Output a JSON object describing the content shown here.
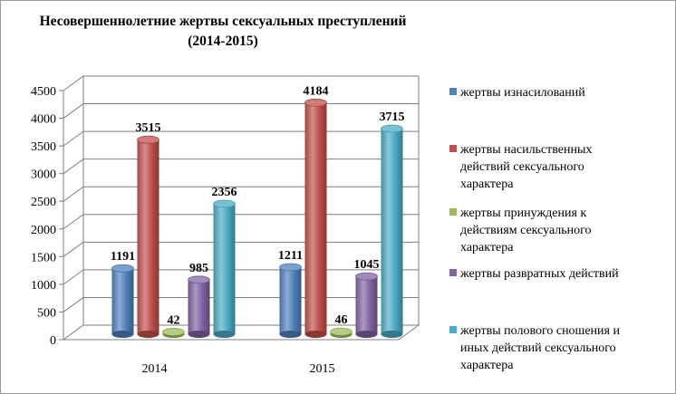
{
  "chart_data": {
    "type": "bar",
    "title_line1": "Несовершеннолетние жертвы сексуальных преступлений",
    "title_line2": "(2014-2015)",
    "categories": [
      "2014",
      "2015"
    ],
    "ylim": [
      0,
      4500
    ],
    "y_ticks": [
      0,
      500,
      1000,
      1500,
      2000,
      2500,
      3000,
      3500,
      4000,
      4500
    ],
    "grid": true,
    "legend_position": "right",
    "series": [
      {
        "name": "жертвы изнасилований",
        "values": [
          1191,
          1211
        ],
        "color": "#4f81bd",
        "legend_lines": [
          "жертвы изнасилований"
        ]
      },
      {
        "name": "жертвы насильственных действий сексуального характера",
        "values": [
          3515,
          4184
        ],
        "color": "#c0504d",
        "legend_lines": [
          "жертвы насильственных",
          "действий сексуального",
          "характера"
        ]
      },
      {
        "name": "жертвы принуждения к действиям сексуального характера",
        "values": [
          42,
          46
        ],
        "color": "#9bbb59",
        "legend_lines": [
          "жертвы принуждения к",
          "действиям сексуального",
          "характера"
        ]
      },
      {
        "name": "жертвы развратных действий",
        "values": [
          985,
          1045
        ],
        "color": "#8064a2",
        "legend_lines": [
          "жертвы развратных действий"
        ]
      },
      {
        "name": "жертвы полового сношения и иных действий сексуального характера",
        "values": [
          2356,
          3715
        ],
        "color": "#4bacc6",
        "legend_lines": [
          "жертвы полового сношения и",
          "иных действий сексуального",
          "характера"
        ]
      }
    ]
  }
}
